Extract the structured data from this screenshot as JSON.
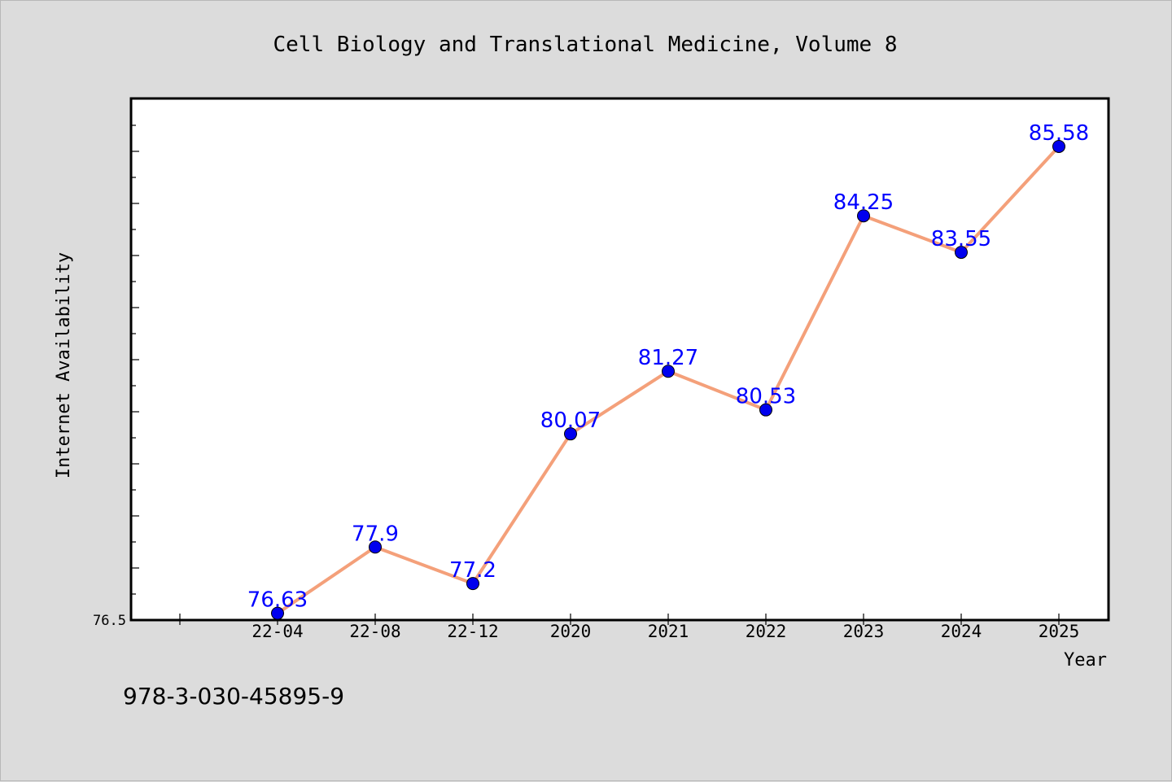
{
  "chart_data": {
    "type": "line",
    "title": "Cell Biology and Translational Medicine, Volume 8",
    "xlabel": "Year",
    "ylabel": "Internet Availability",
    "categories": [
      "22-04",
      "22-08",
      "22-12",
      "2020",
      "2021",
      "2022",
      "2023",
      "2024",
      "2025"
    ],
    "series": [
      {
        "values": [
          76.63,
          77.9,
          77.2,
          80.07,
          81.27,
          80.53,
          84.25,
          83.55,
          85.58
        ]
      }
    ],
    "data_labels": [
      "76.63",
      "77.9",
      "77.2",
      "80.07",
      "81.27",
      "80.53",
      "84.25",
      "83.55",
      "85.58"
    ],
    "y_tick_labels": [
      "76.5"
    ],
    "ylim": [
      76.5,
      86.5
    ],
    "grid": false,
    "line_color": "#f4a07a",
    "marker_color": "#0000ee",
    "label_color": "#0000ff"
  },
  "footer": {
    "isbn": "978-3-030-45895-9"
  }
}
